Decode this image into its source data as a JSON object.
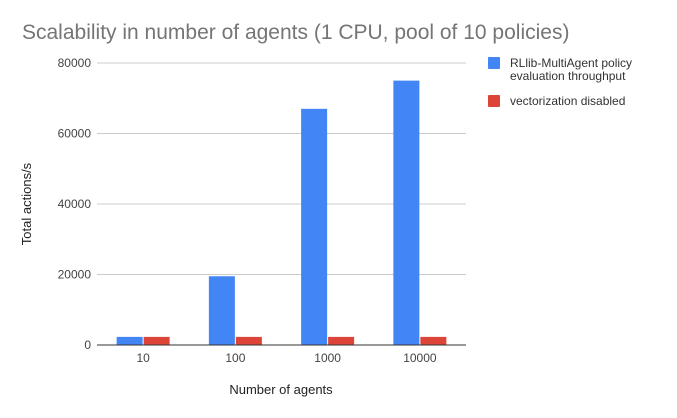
{
  "chart_data": {
    "type": "bar",
    "title": "Scalability in number of agents (1 CPU, pool of 10 policies)",
    "xlabel": "Number of agents",
    "ylabel": "Total actions/s",
    "categories": [
      "10",
      "100",
      "1000",
      "10000"
    ],
    "series": [
      {
        "name": "RLlib-MultiAgent policy evaluation throughput",
        "legend_lines": [
          "RLlib-MultiAgent policy",
          "evaluation throughput"
        ],
        "color": "#4285f4",
        "values": [
          2300,
          19500,
          67000,
          75000
        ]
      },
      {
        "name": "vectorization disabled",
        "legend_lines": [
          "vectorization disabled"
        ],
        "color": "#db4437",
        "values": [
          2300,
          2300,
          2300,
          2300
        ]
      }
    ],
    "ylim": [
      0,
      80000
    ],
    "yticks": [
      "0",
      "20000",
      "40000",
      "60000",
      "80000"
    ],
    "grid": true,
    "legend": "right"
  }
}
